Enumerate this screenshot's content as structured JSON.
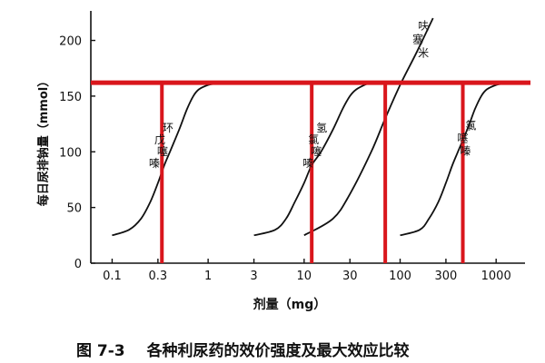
{
  "chart_data": {
    "type": "line",
    "x_scale": "log",
    "xlabel": "剂量（mg）",
    "ylabel": "每日尿排钠量（mmol）",
    "xticks": [
      0.1,
      0.3,
      1,
      3,
      10,
      30,
      100,
      300,
      1000
    ],
    "xtick_labels": [
      "0.1",
      "0.3",
      "1",
      "3",
      "10",
      "30",
      "100",
      "300",
      "1000"
    ],
    "xlim": [
      0.06,
      2000
    ],
    "yticks": [
      0,
      50,
      100,
      150,
      200
    ],
    "ytick_labels": [
      "0",
      "50",
      "100",
      "150",
      "200"
    ],
    "ylim": [
      0,
      220
    ],
    "curve_color": "#111111",
    "marker_color": "#d9161c",
    "series": [
      {
        "name": "环戊噻嗪",
        "x": [
          0.1,
          0.15,
          0.2,
          0.25,
          0.3,
          0.35,
          0.4,
          0.5,
          0.6,
          0.7,
          0.8,
          1.0,
          1.2,
          1.5
        ],
        "y": [
          25,
          30,
          40,
          55,
          72,
          88,
          100,
          120,
          138,
          150,
          156,
          160,
          161,
          161
        ]
      },
      {
        "name": "氢氯噻嗪",
        "x": [
          3,
          5,
          6.5,
          8,
          10,
          12,
          15,
          20,
          25,
          30,
          35,
          45
        ],
        "y": [
          25,
          30,
          40,
          55,
          72,
          88,
          100,
          120,
          138,
          150,
          156,
          161
        ]
      },
      {
        "name": "呋塞米",
        "x": [
          10,
          20,
          30,
          50,
          70,
          100,
          150,
          220
        ],
        "y": [
          25,
          40,
          62,
          100,
          130,
          160,
          190,
          220
        ]
      },
      {
        "name": "氯噻嗪",
        "x": [
          100,
          160,
          200,
          250,
          300,
          350,
          400,
          500,
          600,
          700,
          800,
          1000,
          1200
        ],
        "y": [
          25,
          30,
          40,
          55,
          72,
          88,
          100,
          120,
          138,
          150,
          156,
          160,
          161
        ]
      }
    ],
    "curve_labels": [
      {
        "text": "环戊噻嗪",
        "series": "环戊噻嗪"
      },
      {
        "text": "氢氯噻嗪",
        "series": "氢氯噻嗪"
      },
      {
        "text": "呋塞米",
        "series": "呋塞米"
      },
      {
        "text": "氯噻嗪",
        "series": "氯噻嗪"
      }
    ],
    "reference_lines": {
      "horizontal": {
        "y": 162
      },
      "vertical": [
        {
          "x": 0.33
        },
        {
          "x": 12
        },
        {
          "x": 70
        },
        {
          "x": 450
        }
      ]
    },
    "caption": [
      "图 7-3",
      "各种利尿药的效价强度及最大效应比较"
    ]
  }
}
